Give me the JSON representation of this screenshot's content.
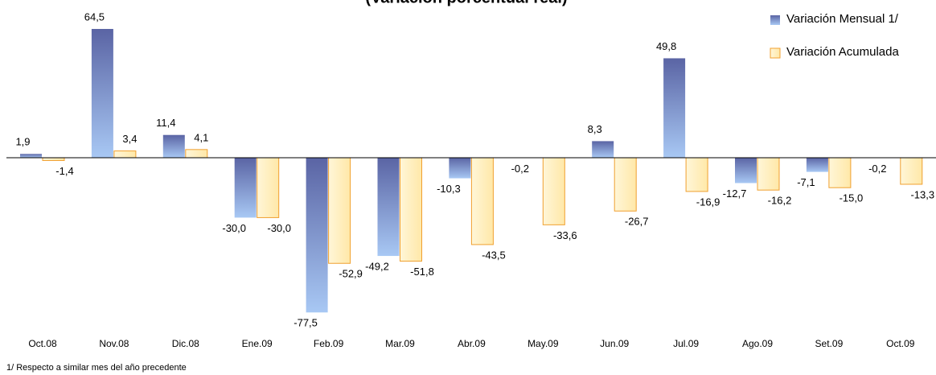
{
  "chart_data": {
    "type": "bar",
    "title": "(Variación porcentual real)",
    "footnote": "1/ Respecto a similar mes del año precedente",
    "categories": [
      "Oct.08",
      "Nov.08",
      "Dic.08",
      "Ene.09",
      "Feb.09",
      "Mar.09",
      "Abr.09",
      "May.09",
      "Jun.09",
      "Jul.09",
      "Ago.09",
      "Set.09",
      "Oct.09"
    ],
    "ylim": [
      -79,
      79
    ],
    "legend": "top-right",
    "series": [
      {
        "name": "Variación Mensual 1/",
        "color": "#6f7fc0",
        "values": [
          1.9,
          64.5,
          11.4,
          -30.0,
          -77.5,
          -49.2,
          -10.3,
          -0.2,
          8.3,
          49.8,
          -12.7,
          -7.1,
          -0.2
        ],
        "value_labels": [
          "1,9",
          "64,5",
          "11,4",
          "-30,0",
          "-77,5",
          "-49,2",
          "-10,3",
          "-0,2",
          "8,3",
          "49,8",
          "-12,7",
          "-7,1",
          "-0,2"
        ]
      },
      {
        "name": "Variación Acumulada",
        "color": "#f5a623",
        "values": [
          -1.4,
          3.4,
          4.1,
          -30.0,
          -52.9,
          -51.8,
          -43.5,
          -33.6,
          -26.7,
          -16.9,
          -16.2,
          -15.0,
          -13.3
        ],
        "value_labels": [
          "-1,4",
          "3,4",
          "4,1",
          "-30,0",
          "-52,9",
          "-51,8",
          "-43,5",
          "-33,6",
          "-26,7",
          "-16,9",
          "-16,2",
          "-15,0",
          "-13,3"
        ]
      }
    ]
  }
}
